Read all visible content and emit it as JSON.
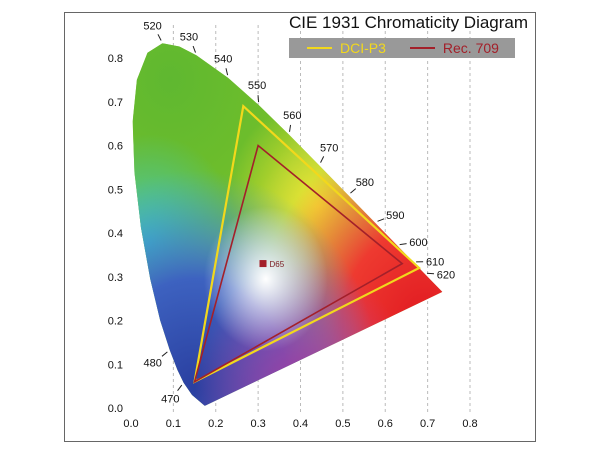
{
  "chart_data": {
    "type": "scatter",
    "title": "CIE 1931 Chromaticity Diagram",
    "xlabel": "",
    "ylabel": "",
    "xlim": [
      0.0,
      0.8
    ],
    "ylim": [
      0.0,
      0.8
    ],
    "x_ticks": [
      "0.0",
      "0.1",
      "0.2",
      "0.3",
      "0.4",
      "0.5",
      "0.6",
      "0.7",
      "0.8"
    ],
    "y_ticks": [
      "0.0",
      "0.1",
      "0.2",
      "0.3",
      "0.4",
      "0.5",
      "0.6",
      "0.7",
      "0.8"
    ],
    "grid": "vertical dashed",
    "legend_position": "top-right",
    "spectral_locus": [
      [
        0.1741,
        0.005
      ],
      [
        0.144,
        0.0297
      ],
      [
        0.1241,
        0.0578
      ],
      [
        0.1096,
        0.0868
      ],
      [
        0.0913,
        0.1327
      ],
      [
        0.0687,
        0.2007
      ],
      [
        0.0454,
        0.295
      ],
      [
        0.0235,
        0.4127
      ],
      [
        0.0082,
        0.5384
      ],
      [
        0.0039,
        0.6548
      ],
      [
        0.0139,
        0.7502
      ],
      [
        0.0389,
        0.812
      ],
      [
        0.0743,
        0.8338
      ],
      [
        0.1142,
        0.8262
      ],
      [
        0.1547,
        0.8059
      ],
      [
        0.2296,
        0.7543
      ],
      [
        0.3016,
        0.6923
      ],
      [
        0.3731,
        0.6245
      ],
      [
        0.4441,
        0.5547
      ],
      [
        0.5125,
        0.4866
      ],
      [
        0.5752,
        0.4242
      ],
      [
        0.627,
        0.3725
      ],
      [
        0.6658,
        0.334
      ],
      [
        0.6915,
        0.3083
      ],
      [
        0.7347,
        0.2653
      ]
    ],
    "wavelength_labels": [
      {
        "label": "470",
        "x": 0.1241,
        "y": 0.0578
      },
      {
        "label": "480",
        "x": 0.0913,
        "y": 0.1327
      },
      {
        "label": "520",
        "x": 0.0743,
        "y": 0.8338
      },
      {
        "label": "530",
        "x": 0.1547,
        "y": 0.8059
      },
      {
        "label": "540",
        "x": 0.2296,
        "y": 0.7543
      },
      {
        "label": "550",
        "x": 0.3016,
        "y": 0.6923
      },
      {
        "label": "560",
        "x": 0.3731,
        "y": 0.6245
      },
      {
        "label": "570",
        "x": 0.4441,
        "y": 0.5547
      },
      {
        "label": "580",
        "x": 0.5125,
        "y": 0.4866
      },
      {
        "label": "590",
        "x": 0.5752,
        "y": 0.4242
      },
      {
        "label": "600",
        "x": 0.627,
        "y": 0.3725
      },
      {
        "label": "610",
        "x": 0.6658,
        "y": 0.334
      },
      {
        "label": "620",
        "x": 0.6915,
        "y": 0.3083
      }
    ],
    "series": [
      {
        "name": "DCI-P3",
        "color": "#f2d81c",
        "points": [
          [
            0.68,
            0.32
          ],
          [
            0.265,
            0.69
          ],
          [
            0.15,
            0.06
          ]
        ]
      },
      {
        "name": "Rec. 709",
        "color": "#a3202a",
        "points": [
          [
            0.64,
            0.33
          ],
          [
            0.3,
            0.6
          ],
          [
            0.15,
            0.06
          ]
        ]
      }
    ],
    "white_point": {
      "label": "D65",
      "x": 0.3127,
      "y": 0.329,
      "color": "#a3202a"
    }
  }
}
